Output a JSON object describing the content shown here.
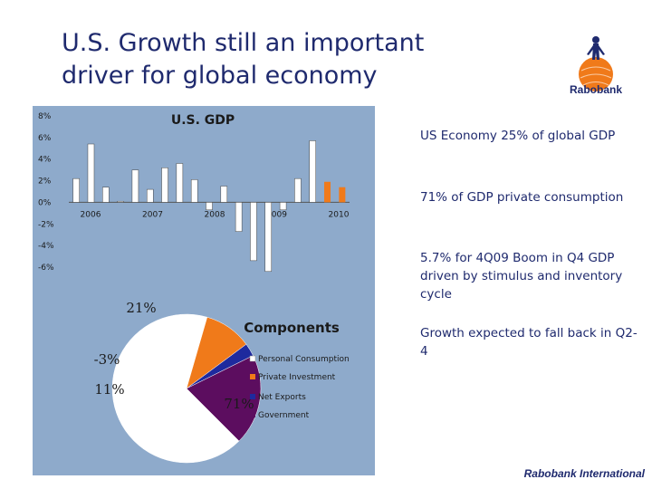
{
  "slide": {
    "title_line1": "U.S.  Growth still an important",
    "title_line2": "driver for global economy",
    "logo_text": "Rabobank",
    "footer": "Rabobank International"
  },
  "bullets": [
    "US Economy 25% of global GDP",
    "71% of GDP private consumption",
    "5.7% for 4Q09 Boom in Q4 GDP driven by stimulus and inventory cycle",
    "Growth expected to fall back in Q2-4"
  ],
  "colors": {
    "title": "#1f2a6e",
    "panel_bg": "#8eaacb",
    "bar_actual": "#ffffff",
    "bar_forecast": "#f07a1a",
    "personal_consumption": "#ffffff",
    "private_investment": "#f07a1a",
    "net_exports": "#1e2a9e",
    "government": "#5c0d5f"
  },
  "chart_data": [
    {
      "type": "bar",
      "title": "U.S. GDP",
      "xlabel": "",
      "ylabel": "",
      "ylim": [
        -6,
        8
      ],
      "yticks": [
        "8%",
        "6%",
        "4%",
        "2%",
        "0%",
        "-2%",
        "-4%",
        "-6%"
      ],
      "year_labels": [
        "2006",
        "2007",
        "2008",
        "2009",
        "2010"
      ],
      "values": [
        2.2,
        5.4,
        1.4,
        0.1,
        3.0,
        1.2,
        3.2,
        3.6,
        2.1,
        -0.7,
        1.5,
        -2.7,
        -5.4,
        -6.4,
        -0.7,
        2.2,
        5.7,
        1.9,
        1.4
      ],
      "forecast_from_index": 17,
      "grid": false,
      "legend": "none"
    },
    {
      "type": "pie",
      "title": "Components",
      "labels": [
        "Personal Consumption",
        "Private Investment",
        "Net Exports",
        "Government"
      ],
      "values": [
        71,
        11,
        -3,
        21
      ],
      "value_labels": [
        "71%",
        "11%",
        "-3%",
        "21%"
      ],
      "legend": "right"
    }
  ]
}
